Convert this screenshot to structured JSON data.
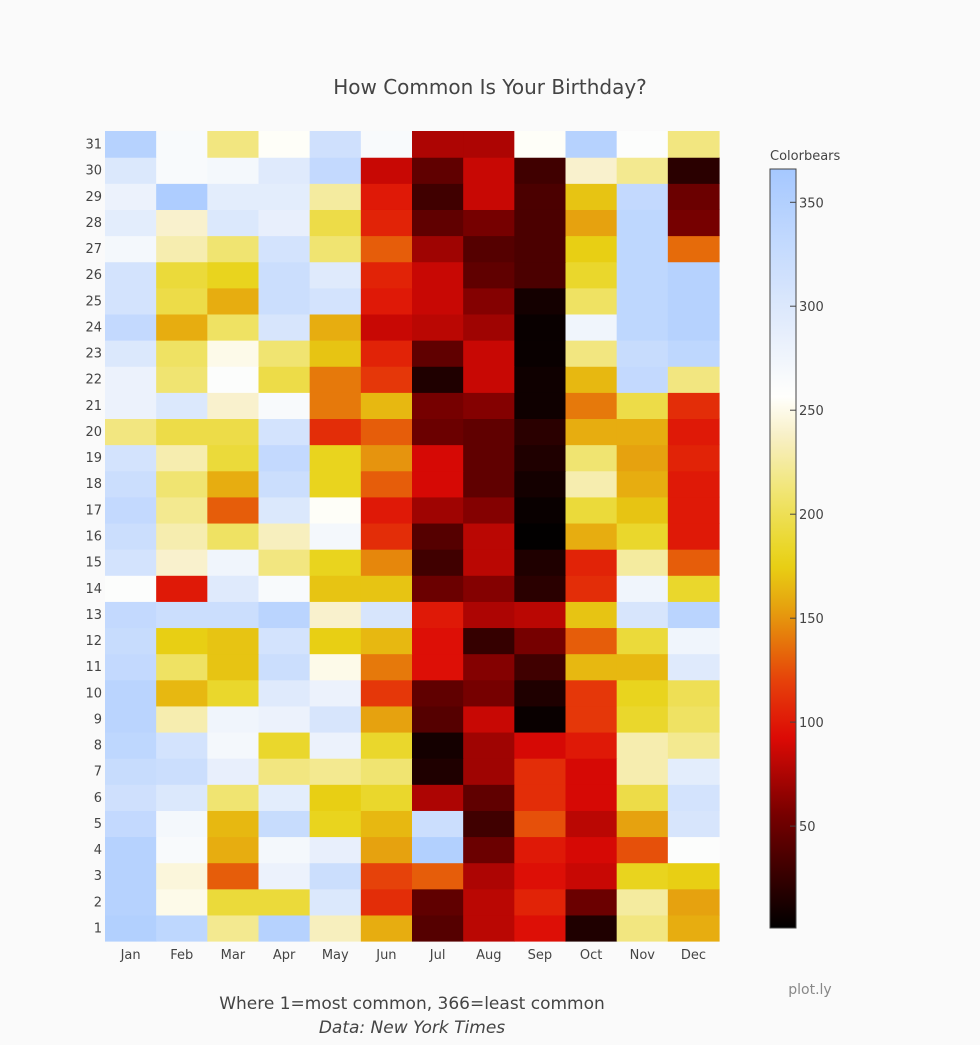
{
  "chart_data": {
    "type": "heatmap",
    "title": "How Common Is Your Birthday?",
    "x": [
      "Jan",
      "Feb",
      "Mar",
      "Apr",
      "May",
      "Jun",
      "Jul",
      "Aug",
      "Sep",
      "Oct",
      "Nov",
      "Dec"
    ],
    "y": [
      1,
      2,
      3,
      4,
      5,
      6,
      7,
      8,
      9,
      10,
      11,
      12,
      13,
      14,
      15,
      16,
      17,
      18,
      19,
      20,
      21,
      22,
      23,
      24,
      25,
      26,
      27,
      28,
      29,
      30,
      31
    ],
    "z": [
      [
        350,
        335,
        220,
        345,
        235,
        160,
        40,
        80,
        95,
        15,
        215,
        160
      ],
      [
        345,
        250,
        190,
        190,
        300,
        110,
        45,
        80,
        105,
        50,
        225,
        155
      ],
      [
        345,
        245,
        130,
        280,
        320,
        120,
        130,
        75,
        95,
        85,
        180,
        175
      ],
      [
        345,
        265,
        160,
        270,
        285,
        155,
        350,
        50,
        100,
        90,
        125,
        260
      ],
      [
        330,
        270,
        165,
        325,
        180,
        165,
        320,
        30,
        125,
        80,
        155,
        305
      ],
      [
        315,
        300,
        210,
        290,
        175,
        185,
        75,
        45,
        110,
        90,
        195,
        310
      ],
      [
        325,
        320,
        285,
        215,
        220,
        210,
        15,
        70,
        110,
        90,
        230,
        290
      ],
      [
        335,
        310,
        270,
        185,
        280,
        185,
        10,
        70,
        90,
        100,
        230,
        220
      ],
      [
        340,
        230,
        275,
        280,
        305,
        155,
        40,
        85,
        5,
        115,
        185,
        205
      ],
      [
        340,
        165,
        185,
        295,
        280,
        115,
        45,
        55,
        15,
        115,
        180,
        200
      ],
      [
        330,
        205,
        170,
        320,
        250,
        140,
        95,
        60,
        30,
        165,
        165,
        295
      ],
      [
        325,
        175,
        170,
        310,
        175,
        165,
        95,
        25,
        55,
        130,
        190,
        275
      ],
      [
        330,
        320,
        320,
        340,
        240,
        305,
        100,
        75,
        80,
        170,
        305,
        340
      ],
      [
        260,
        100,
        295,
        265,
        170,
        170,
        50,
        60,
        20,
        110,
        275,
        185
      ],
      [
        310,
        240,
        275,
        215,
        180,
        145,
        30,
        80,
        15,
        105,
        225,
        130
      ],
      [
        320,
        230,
        205,
        235,
        270,
        110,
        40,
        80,
        2,
        160,
        185,
        100
      ],
      [
        330,
        220,
        130,
        300,
        255,
        100,
        70,
        60,
        5,
        190,
        170,
        100
      ],
      [
        320,
        210,
        160,
        320,
        180,
        130,
        90,
        45,
        10,
        230,
        160,
        100
      ],
      [
        310,
        230,
        190,
        330,
        180,
        150,
        90,
        45,
        15,
        210,
        155,
        105
      ],
      [
        215,
        195,
        195,
        310,
        110,
        130,
        50,
        45,
        20,
        160,
        160,
        100
      ],
      [
        280,
        300,
        240,
        265,
        140,
        165,
        55,
        60,
        8,
        140,
        195,
        110
      ],
      [
        280,
        210,
        260,
        195,
        140,
        115,
        15,
        85,
        8,
        165,
        330,
        215
      ],
      [
        300,
        205,
        250,
        210,
        170,
        105,
        45,
        85,
        5,
        215,
        325,
        335
      ],
      [
        330,
        160,
        205,
        305,
        160,
        85,
        80,
        70,
        5,
        275,
        335,
        345
      ],
      [
        310,
        195,
        160,
        320,
        310,
        100,
        85,
        60,
        10,
        205,
        335,
        345
      ],
      [
        310,
        190,
        180,
        320,
        295,
        105,
        85,
        45,
        35,
        185,
        335,
        345
      ],
      [
        270,
        230,
        210,
        310,
        210,
        130,
        70,
        40,
        35,
        175,
        335,
        135
      ],
      [
        290,
        240,
        300,
        285,
        195,
        105,
        45,
        55,
        35,
        155,
        335,
        55
      ],
      [
        280,
        355,
        290,
        290,
        225,
        100,
        30,
        85,
        35,
        170,
        330,
        50
      ],
      [
        300,
        265,
        270,
        295,
        330,
        85,
        45,
        85,
        30,
        240,
        220,
        20
      ],
      [
        345,
        265,
        215,
        255,
        315,
        265,
        75,
        75,
        255,
        345,
        260,
        215
      ]
    ],
    "zmin": 1,
    "zmax": 366,
    "colorbar": {
      "title": "Colorbears",
      "tickvals": [
        50,
        100,
        150,
        200,
        250,
        300,
        350
      ]
    },
    "annotations": {
      "line1": "Where 1=most common, 366=least common",
      "line2": "Data: New York Times"
    },
    "brand": "plot.ly"
  }
}
